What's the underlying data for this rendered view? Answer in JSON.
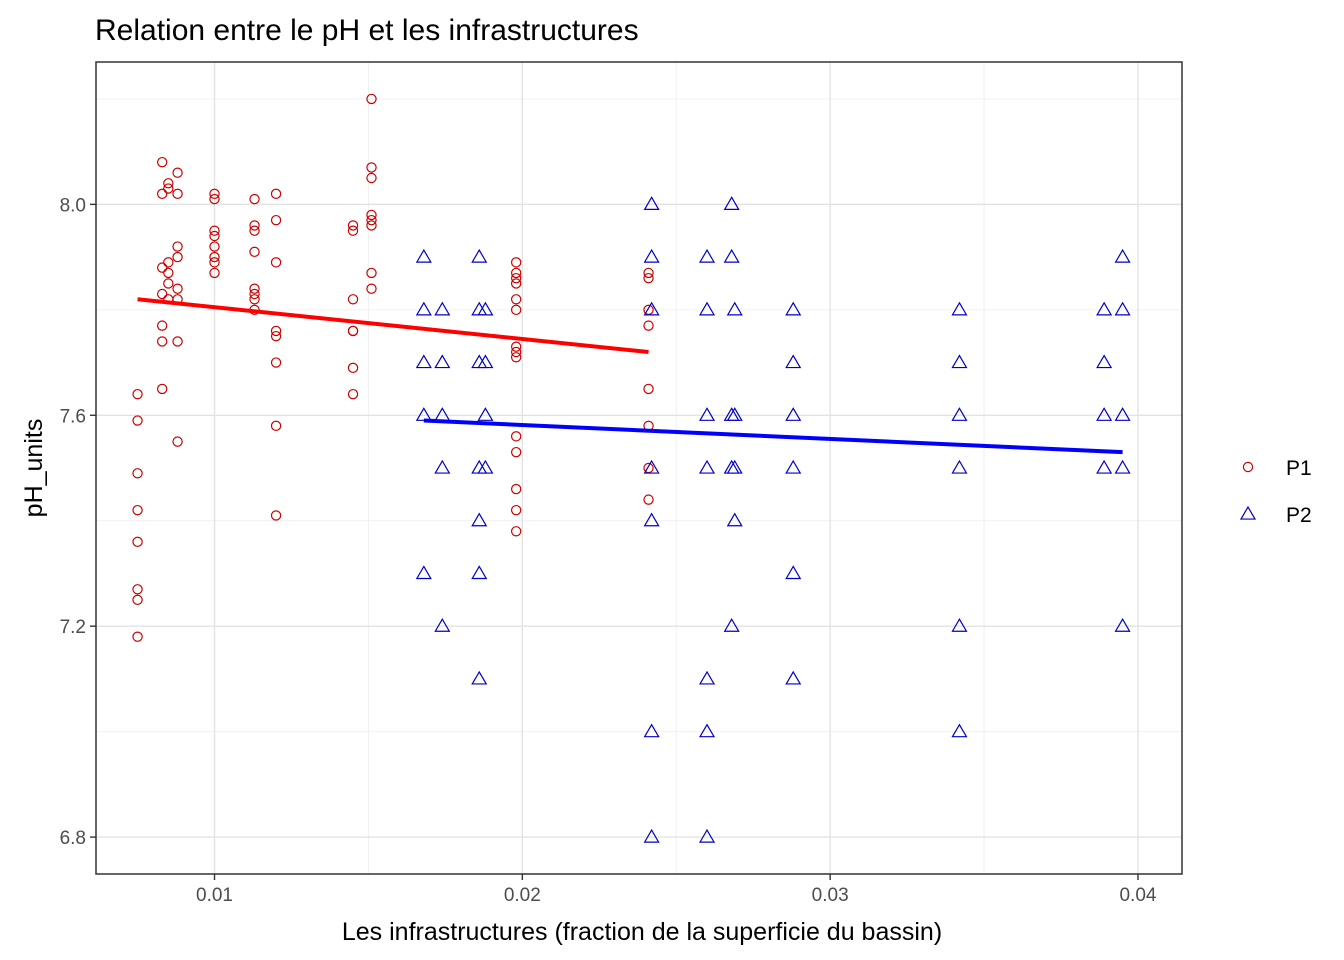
{
  "chart_data": {
    "type": "scatter",
    "title": "Relation entre le pH et les infrastructures",
    "xlabel": "Les infrastructures (fraction de la superficie du bassin)",
    "ylabel": "pH_units",
    "xlim": [
      0.00615,
      0.04143
    ],
    "ylim": [
      6.73,
      8.27
    ],
    "x_ticks": [
      0.01,
      0.02,
      0.03,
      0.04
    ],
    "x_tick_labels": [
      "0.01",
      "0.02",
      "0.03",
      "0.04"
    ],
    "y_ticks": [
      6.8,
      7.2,
      7.6,
      8.0
    ],
    "y_tick_labels": [
      "6.8",
      "7.2",
      "7.6",
      "8.0"
    ],
    "grid": true,
    "legend_position": "right",
    "series": [
      {
        "name": "P1",
        "color": "#cc0000",
        "marker": "circle",
        "trend_color": "#ff0000",
        "trend": {
          "x": [
            0.0075,
            0.0241
          ],
          "y": [
            7.82,
            7.72
          ]
        },
        "points": [
          {
            "x": 0.0075,
            "y": 7.64
          },
          {
            "x": 0.0075,
            "y": 7.59
          },
          {
            "x": 0.0075,
            "y": 7.49
          },
          {
            "x": 0.0075,
            "y": 7.42
          },
          {
            "x": 0.0075,
            "y": 7.36
          },
          {
            "x": 0.0075,
            "y": 7.27
          },
          {
            "x": 0.0075,
            "y": 7.25
          },
          {
            "x": 0.0075,
            "y": 7.18
          },
          {
            "x": 0.0083,
            "y": 8.08
          },
          {
            "x": 0.0083,
            "y": 8.02
          },
          {
            "x": 0.0083,
            "y": 7.88
          },
          {
            "x": 0.0083,
            "y": 7.83
          },
          {
            "x": 0.0083,
            "y": 7.77
          },
          {
            "x": 0.0083,
            "y": 7.74
          },
          {
            "x": 0.0083,
            "y": 7.65
          },
          {
            "x": 0.0085,
            "y": 8.04
          },
          {
            "x": 0.0085,
            "y": 8.03
          },
          {
            "x": 0.0085,
            "y": 7.89
          },
          {
            "x": 0.0085,
            "y": 7.87
          },
          {
            "x": 0.0085,
            "y": 7.85
          },
          {
            "x": 0.0085,
            "y": 7.82
          },
          {
            "x": 0.0088,
            "y": 8.06
          },
          {
            "x": 0.0088,
            "y": 8.02
          },
          {
            "x": 0.0088,
            "y": 7.92
          },
          {
            "x": 0.0088,
            "y": 7.9
          },
          {
            "x": 0.0088,
            "y": 7.84
          },
          {
            "x": 0.0088,
            "y": 7.82
          },
          {
            "x": 0.0088,
            "y": 7.74
          },
          {
            "x": 0.0088,
            "y": 7.55
          },
          {
            "x": 0.01,
            "y": 8.02
          },
          {
            "x": 0.01,
            "y": 8.01
          },
          {
            "x": 0.01,
            "y": 7.95
          },
          {
            "x": 0.01,
            "y": 7.94
          },
          {
            "x": 0.01,
            "y": 7.92
          },
          {
            "x": 0.01,
            "y": 7.9
          },
          {
            "x": 0.01,
            "y": 7.89
          },
          {
            "x": 0.01,
            "y": 7.87
          },
          {
            "x": 0.0113,
            "y": 8.01
          },
          {
            "x": 0.0113,
            "y": 7.96
          },
          {
            "x": 0.0113,
            "y": 7.95
          },
          {
            "x": 0.0113,
            "y": 7.91
          },
          {
            "x": 0.0113,
            "y": 7.84
          },
          {
            "x": 0.0113,
            "y": 7.83
          },
          {
            "x": 0.0113,
            "y": 7.82
          },
          {
            "x": 0.0113,
            "y": 7.8
          },
          {
            "x": 0.012,
            "y": 8.02
          },
          {
            "x": 0.012,
            "y": 7.97
          },
          {
            "x": 0.012,
            "y": 7.89
          },
          {
            "x": 0.012,
            "y": 7.76
          },
          {
            "x": 0.012,
            "y": 7.75
          },
          {
            "x": 0.012,
            "y": 7.7
          },
          {
            "x": 0.012,
            "y": 7.58
          },
          {
            "x": 0.012,
            "y": 7.41
          },
          {
            "x": 0.0145,
            "y": 7.96
          },
          {
            "x": 0.0145,
            "y": 7.95
          },
          {
            "x": 0.0145,
            "y": 7.82
          },
          {
            "x": 0.0145,
            "y": 7.76
          },
          {
            "x": 0.0145,
            "y": 7.76
          },
          {
            "x": 0.0145,
            "y": 7.69
          },
          {
            "x": 0.0145,
            "y": 7.64
          },
          {
            "x": 0.0151,
            "y": 8.2
          },
          {
            "x": 0.0151,
            "y": 8.07
          },
          {
            "x": 0.0151,
            "y": 8.05
          },
          {
            "x": 0.0151,
            "y": 7.98
          },
          {
            "x": 0.0151,
            "y": 7.97
          },
          {
            "x": 0.0151,
            "y": 7.96
          },
          {
            "x": 0.0151,
            "y": 7.87
          },
          {
            "x": 0.0151,
            "y": 7.84
          },
          {
            "x": 0.0198,
            "y": 7.89
          },
          {
            "x": 0.0198,
            "y": 7.87
          },
          {
            "x": 0.0198,
            "y": 7.86
          },
          {
            "x": 0.0198,
            "y": 7.85
          },
          {
            "x": 0.0198,
            "y": 7.82
          },
          {
            "x": 0.0198,
            "y": 7.8
          },
          {
            "x": 0.0198,
            "y": 7.73
          },
          {
            "x": 0.0198,
            "y": 7.72
          },
          {
            "x": 0.0198,
            "y": 7.71
          },
          {
            "x": 0.0198,
            "y": 7.56
          },
          {
            "x": 0.0198,
            "y": 7.53
          },
          {
            "x": 0.0198,
            "y": 7.46
          },
          {
            "x": 0.0198,
            "y": 7.42
          },
          {
            "x": 0.0198,
            "y": 7.38
          },
          {
            "x": 0.0241,
            "y": 7.87
          },
          {
            "x": 0.0241,
            "y": 7.86
          },
          {
            "x": 0.0241,
            "y": 7.8
          },
          {
            "x": 0.0241,
            "y": 7.77
          },
          {
            "x": 0.0241,
            "y": 7.65
          },
          {
            "x": 0.0241,
            "y": 7.58
          },
          {
            "x": 0.0241,
            "y": 7.5
          },
          {
            "x": 0.0241,
            "y": 7.44
          }
        ]
      },
      {
        "name": "P2",
        "color": "#0000cc",
        "marker": "triangle",
        "trend_color": "#0000ff",
        "trend": {
          "x": [
            0.0168,
            0.0395
          ],
          "y": [
            7.59,
            7.53
          ]
        },
        "points": [
          {
            "x": 0.0168,
            "y": 7.9
          },
          {
            "x": 0.0168,
            "y": 7.8
          },
          {
            "x": 0.0168,
            "y": 7.7
          },
          {
            "x": 0.0168,
            "y": 7.6
          },
          {
            "x": 0.0168,
            "y": 7.3
          },
          {
            "x": 0.0174,
            "y": 7.8
          },
          {
            "x": 0.0174,
            "y": 7.7
          },
          {
            "x": 0.0174,
            "y": 7.6
          },
          {
            "x": 0.0174,
            "y": 7.5
          },
          {
            "x": 0.0174,
            "y": 7.2
          },
          {
            "x": 0.0186,
            "y": 7.9
          },
          {
            "x": 0.0186,
            "y": 7.8
          },
          {
            "x": 0.0186,
            "y": 7.7
          },
          {
            "x": 0.0186,
            "y": 7.5
          },
          {
            "x": 0.0186,
            "y": 7.4
          },
          {
            "x": 0.0186,
            "y": 7.3
          },
          {
            "x": 0.0186,
            "y": 7.1
          },
          {
            "x": 0.0188,
            "y": 7.8
          },
          {
            "x": 0.0188,
            "y": 7.7
          },
          {
            "x": 0.0188,
            "y": 7.6
          },
          {
            "x": 0.0188,
            "y": 7.5
          },
          {
            "x": 0.0242,
            "y": 8.0
          },
          {
            "x": 0.0242,
            "y": 7.9
          },
          {
            "x": 0.0242,
            "y": 7.8
          },
          {
            "x": 0.0242,
            "y": 7.5
          },
          {
            "x": 0.0242,
            "y": 7.4
          },
          {
            "x": 0.0242,
            "y": 7.0
          },
          {
            "x": 0.0242,
            "y": 6.8
          },
          {
            "x": 0.026,
            "y": 7.9
          },
          {
            "x": 0.026,
            "y": 7.8
          },
          {
            "x": 0.026,
            "y": 7.6
          },
          {
            "x": 0.026,
            "y": 7.5
          },
          {
            "x": 0.026,
            "y": 7.1
          },
          {
            "x": 0.026,
            "y": 7.0
          },
          {
            "x": 0.026,
            "y": 6.8
          },
          {
            "x": 0.0268,
            "y": 8.0
          },
          {
            "x": 0.0268,
            "y": 7.9
          },
          {
            "x": 0.0268,
            "y": 7.6
          },
          {
            "x": 0.0268,
            "y": 7.5
          },
          {
            "x": 0.0268,
            "y": 7.2
          },
          {
            "x": 0.0269,
            "y": 7.8
          },
          {
            "x": 0.0269,
            "y": 7.6
          },
          {
            "x": 0.0269,
            "y": 7.5
          },
          {
            "x": 0.0269,
            "y": 7.4
          },
          {
            "x": 0.0288,
            "y": 7.8
          },
          {
            "x": 0.0288,
            "y": 7.7
          },
          {
            "x": 0.0288,
            "y": 7.6
          },
          {
            "x": 0.0288,
            "y": 7.5
          },
          {
            "x": 0.0288,
            "y": 7.3
          },
          {
            "x": 0.0288,
            "y": 7.1
          },
          {
            "x": 0.0342,
            "y": 7.8
          },
          {
            "x": 0.0342,
            "y": 7.7
          },
          {
            "x": 0.0342,
            "y": 7.6
          },
          {
            "x": 0.0342,
            "y": 7.5
          },
          {
            "x": 0.0342,
            "y": 7.2
          },
          {
            "x": 0.0342,
            "y": 7.0
          },
          {
            "x": 0.0389,
            "y": 7.8
          },
          {
            "x": 0.0389,
            "y": 7.7
          },
          {
            "x": 0.0389,
            "y": 7.6
          },
          {
            "x": 0.0389,
            "y": 7.5
          },
          {
            "x": 0.0395,
            "y": 7.9
          },
          {
            "x": 0.0395,
            "y": 7.8
          },
          {
            "x": 0.0395,
            "y": 7.6
          },
          {
            "x": 0.0395,
            "y": 7.5
          },
          {
            "x": 0.0395,
            "y": 7.2
          }
        ]
      }
    ]
  }
}
